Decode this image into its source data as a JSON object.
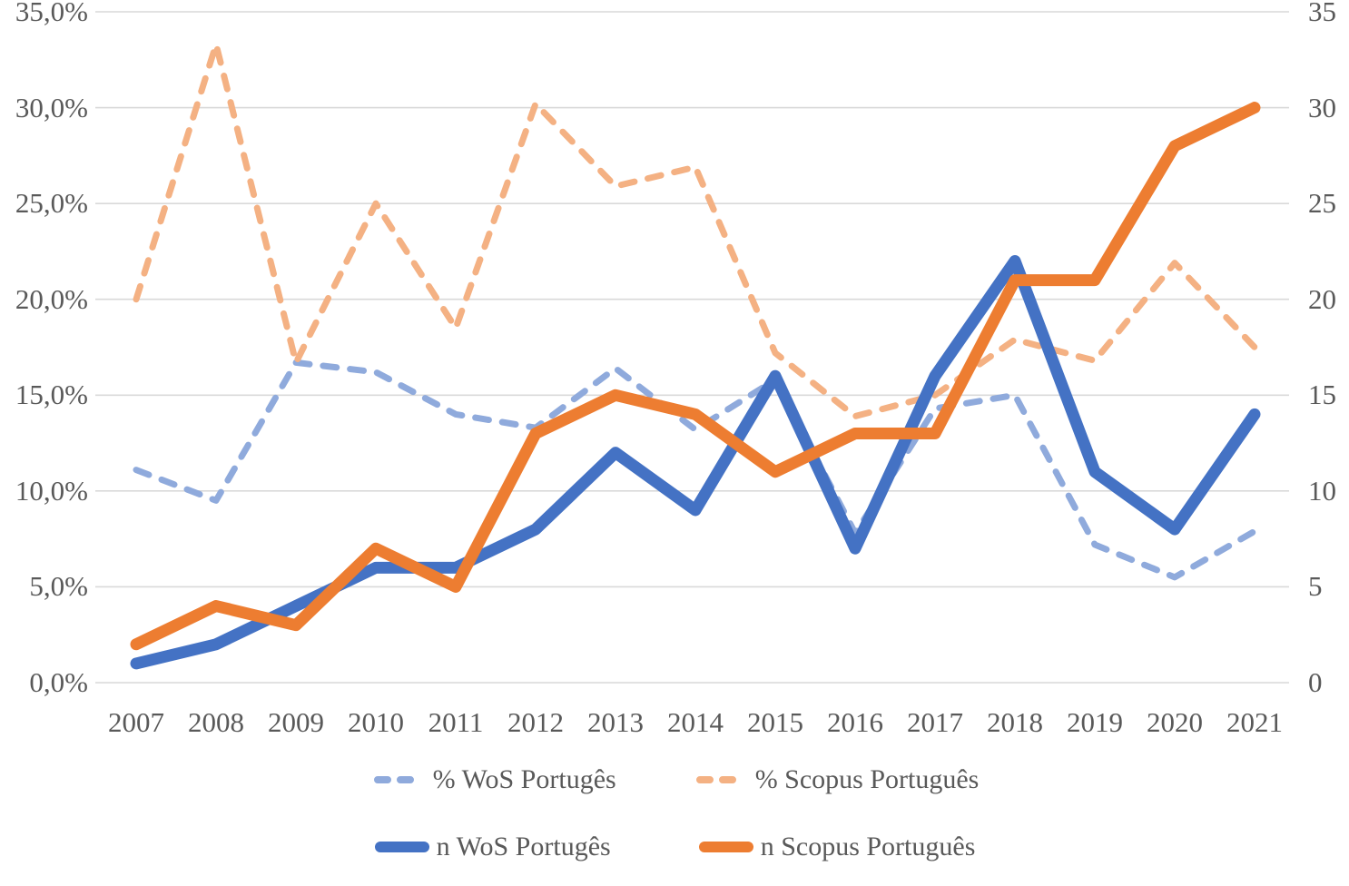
{
  "chart_data": {
    "type": "line",
    "title": "",
    "categories": [
      "2007",
      "2008",
      "2009",
      "2010",
      "2011",
      "2012",
      "2013",
      "2014",
      "2015",
      "2016",
      "2017",
      "2018",
      "2019",
      "2020",
      "2021"
    ],
    "series": [
      {
        "name": "% WoS Portugês",
        "axis": "left",
        "style": "dashed",
        "color": "#8FAADC",
        "unit": "%",
        "values": [
          11.1,
          9.5,
          16.7,
          16.2,
          14.0,
          13.3,
          16.4,
          13.2,
          15.8,
          7.8,
          14.3,
          15.0,
          7.2,
          5.5,
          7.9
        ]
      },
      {
        "name": "% Scopus Português",
        "axis": "left",
        "style": "dashed",
        "color": "#F4B183",
        "unit": "%",
        "values": [
          20.0,
          33.3,
          16.7,
          25.0,
          18.5,
          30.2,
          25.9,
          26.9,
          17.2,
          13.9,
          15.0,
          17.9,
          16.8,
          21.9,
          17.5
        ]
      },
      {
        "name": "n WoS Portugês",
        "axis": "right",
        "style": "solid",
        "color": "#4472C4",
        "unit": "count",
        "values": [
          1,
          2,
          4,
          6,
          6,
          8,
          12,
          9,
          16,
          7,
          16,
          22,
          11,
          8,
          14
        ]
      },
      {
        "name": "n Scopus Português",
        "axis": "right",
        "style": "solid",
        "color": "#ED7D31",
        "unit": "count",
        "values": [
          2,
          4,
          3,
          7,
          5,
          13,
          15,
          14,
          11,
          13,
          13,
          21,
          21,
          28,
          30
        ]
      }
    ],
    "left_axis": {
      "min": 0,
      "max": 35,
      "step": 5,
      "ticks": [
        "0,0%",
        "5,0%",
        "10,0%",
        "15,0%",
        "20,0%",
        "25,0%",
        "30,0%",
        "35,0%"
      ]
    },
    "right_axis": {
      "min": 0,
      "max": 35,
      "step": 5,
      "ticks": [
        "0",
        "5",
        "10",
        "15",
        "20",
        "25",
        "30",
        "35"
      ]
    },
    "grid": true,
    "gridline_color": "#D9D9D9",
    "legend_position": "bottom",
    "legend_rows": [
      [
        0,
        1
      ],
      [
        2,
        3
      ]
    ]
  }
}
